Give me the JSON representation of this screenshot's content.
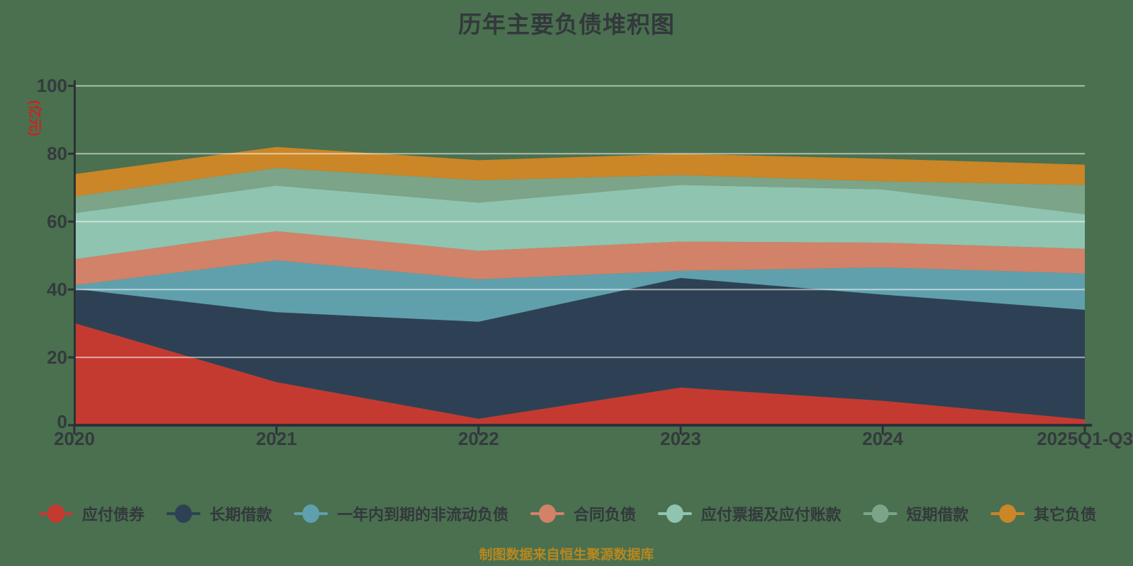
{
  "header": {
    "title": "历年主要负债堆积图"
  },
  "footer": {
    "text": "制图数据来自恒生聚源数据库"
  },
  "palette": {
    "background": "#4a704f",
    "axis_line": "#2c3137",
    "grid_line": "rgba(255,255,255,0.55)",
    "tick_text": "#343a3e",
    "title_text": "#33383c",
    "unit_text": "#cc2222",
    "footer_text": "#b8871f"
  },
  "chart_data": {
    "type": "area",
    "stacked": true,
    "title": "历年主要负债堆积图",
    "ylabel": "(亿元)",
    "xlabel": "",
    "ylim": [
      0,
      100
    ],
    "y_ticks": [
      0,
      20,
      40,
      60,
      80,
      100
    ],
    "grid": true,
    "legend_position": "bottom",
    "x": [
      "2020",
      "2021",
      "2022",
      "2023",
      "2024",
      "2025Q1-Q3"
    ],
    "series": [
      {
        "name": "应付债券",
        "color": "#c43a31",
        "values": [
          30.1,
          12.7,
          1.9,
          11.1,
          7.2,
          1.7
        ]
      },
      {
        "name": "长期借款",
        "color": "#2e4154",
        "values": [
          10.1,
          20.6,
          28.6,
          32.3,
          31.3,
          32.3
        ]
      },
      {
        "name": "一年内到期的非流动负债",
        "color": "#5fa0ac",
        "values": [
          1.1,
          15.3,
          12.5,
          2.1,
          8.0,
          10.7
        ]
      },
      {
        "name": "合同负债",
        "color": "#d28268",
        "values": [
          7.6,
          8.6,
          8.4,
          8.6,
          7.3,
          7.3
        ]
      },
      {
        "name": "应付票据及应付账款",
        "color": "#8fc4b0",
        "values": [
          13.6,
          13.4,
          14.2,
          16.7,
          15.7,
          10.2
        ]
      },
      {
        "name": "短期借款",
        "color": "#7ca488",
        "values": [
          4.9,
          5.2,
          6.6,
          2.9,
          2.4,
          8.6
        ]
      },
      {
        "name": "其它负债",
        "color": "#ca8627",
        "values": [
          6.6,
          6.2,
          5.9,
          6.3,
          6.6,
          6.0
        ]
      }
    ],
    "stacked_totals": [
      74.0,
      82.0,
      78.1,
      80.0,
      78.5,
      76.8
    ]
  }
}
